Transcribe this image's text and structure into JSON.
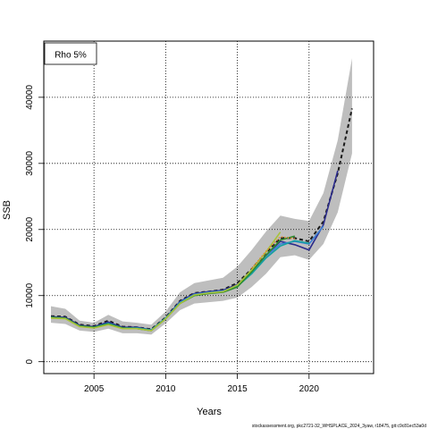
{
  "chart_data": {
    "type": "line",
    "title": "",
    "xlabel": "Years",
    "ylabel": "SSB",
    "xlim": [
      2001.5,
      2024.5
    ],
    "ylim": [
      -1800,
      48500
    ],
    "xticks": [
      2005,
      2010,
      2015,
      2020
    ],
    "yticks": [
      0,
      10000,
      20000,
      30000,
      40000
    ],
    "grid": true,
    "legend": {
      "placement": "top-left",
      "label": "Rho 5%"
    },
    "footer": "stockassessment.org, pkc2721-32_WHSPLACE_2024_3yaw, r18475, git:c9c81ec53a0d",
    "confidence_band": {
      "color": "#bebebe",
      "x": [
        2002,
        2003,
        2004,
        2005,
        2006,
        2007,
        2008,
        2009,
        2010,
        2011,
        2012,
        2013,
        2014,
        2015,
        2016,
        2017,
        2018,
        2019,
        2020,
        2021,
        2022,
        2023
      ],
      "lower": [
        5900,
        5700,
        4700,
        4500,
        5000,
        4300,
        4300,
        4100,
        5800,
        7800,
        8800,
        9000,
        9200,
        9700,
        11300,
        13300,
        15800,
        16100,
        15400,
        17800,
        22600,
        31500
      ],
      "upper": [
        8400,
        8000,
        6200,
        5900,
        7100,
        6100,
        5900,
        5600,
        7600,
        10500,
        11900,
        12300,
        12700,
        14400,
        16900,
        19700,
        22100,
        21600,
        21300,
        25500,
        33500,
        45900
      ]
    },
    "series": [
      {
        "color": "#1a1a1a",
        "dashed": true,
        "x": [
          2002,
          2003,
          2004,
          2005,
          2006,
          2007,
          2008,
          2009,
          2010,
          2011,
          2012,
          2013,
          2014,
          2015,
          2016,
          2017,
          2018,
          2019,
          2020,
          2021,
          2022,
          2023
        ],
        "values": [
          6900,
          6800,
          5600,
          5400,
          6200,
          5300,
          5200,
          4900,
          6700,
          9200,
          10400,
          10600,
          10900,
          11900,
          14000,
          16500,
          18700,
          18700,
          18200,
          21200,
          28500,
          38300
        ]
      },
      {
        "color": "#2b2b8c",
        "x": [
          2002,
          2003,
          2004,
          2005,
          2006,
          2007,
          2008,
          2009,
          2010,
          2011,
          2012,
          2013,
          2014,
          2015,
          2016,
          2017,
          2018,
          2019,
          2020,
          2021,
          2022
        ],
        "values": [
          6800,
          6700,
          5500,
          5300,
          6000,
          5200,
          5200,
          4800,
          6600,
          9100,
          10300,
          10600,
          10800,
          11700,
          13700,
          16100,
          18200,
          17700,
          16900,
          20700,
          28900
        ]
      },
      {
        "color": "#3c7fd6",
        "x": [
          2002,
          2003,
          2004,
          2005,
          2006,
          2007,
          2008,
          2009,
          2010,
          2011,
          2012,
          2013,
          2014,
          2015,
          2016,
          2017,
          2018,
          2019,
          2020,
          2021
        ],
        "values": [
          6700,
          6600,
          5400,
          5200,
          5800,
          5100,
          5100,
          4800,
          6600,
          9000,
          10200,
          10500,
          10700,
          11500,
          13500,
          16000,
          17800,
          18200,
          17800,
          20500
        ]
      },
      {
        "color": "#15a0a0",
        "x": [
          2002,
          2003,
          2004,
          2005,
          2006,
          2007,
          2008,
          2009,
          2010,
          2011,
          2012,
          2013,
          2014,
          2015,
          2016,
          2017,
          2018,
          2019,
          2020
        ],
        "values": [
          6700,
          6600,
          5400,
          5200,
          5800,
          5100,
          5100,
          4800,
          6600,
          8900,
          10100,
          10400,
          10600,
          11400,
          13300,
          15700,
          17500,
          18300,
          17900
        ]
      },
      {
        "color": "#2e8b2e",
        "x": [
          2002,
          2003,
          2004,
          2005,
          2006,
          2007,
          2008,
          2009,
          2010,
          2011,
          2012,
          2013,
          2014,
          2015,
          2016,
          2017,
          2018,
          2019
        ],
        "values": [
          6700,
          6600,
          5400,
          5200,
          5700,
          5100,
          5000,
          4700,
          6500,
          8800,
          10000,
          10300,
          10500,
          11300,
          13600,
          16100,
          18400,
          19000
        ]
      },
      {
        "color": "#a8c23a",
        "x": [
          2002,
          2003,
          2004,
          2005,
          2006,
          2007,
          2008,
          2009,
          2010,
          2011,
          2012,
          2013,
          2014,
          2015,
          2016,
          2017,
          2018
        ],
        "values": [
          6600,
          6500,
          5300,
          5100,
          5600,
          5000,
          5000,
          4700,
          6500,
          8800,
          10100,
          10400,
          10600,
          11600,
          13900,
          16600,
          19600
        ]
      },
      {
        "color": "#e58a2a",
        "dotted": true,
        "x": [
          2016,
          2017,
          2018,
          2019
        ],
        "values": [
          14100,
          16700,
          18900,
          18600
        ]
      }
    ]
  }
}
